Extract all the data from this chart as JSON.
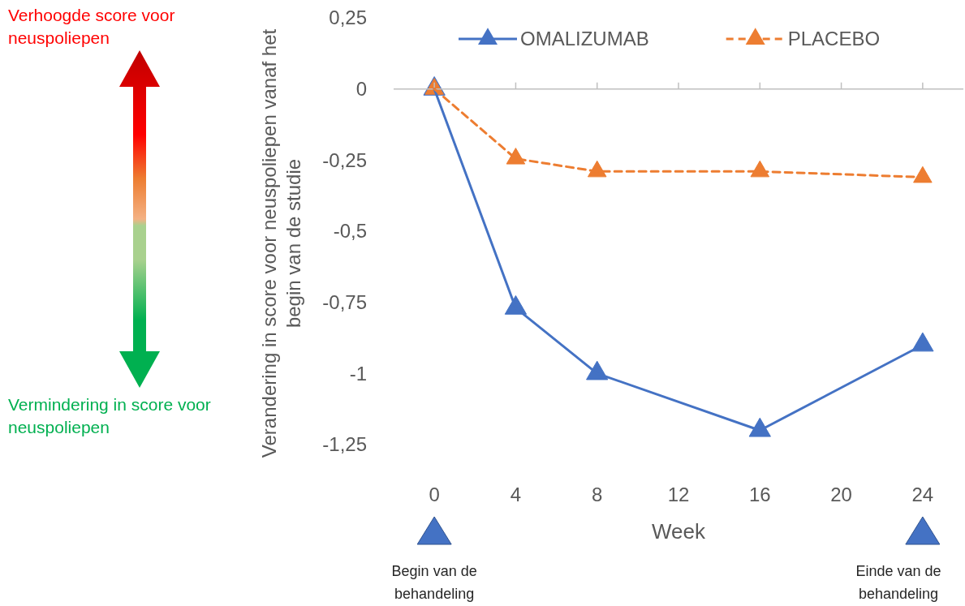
{
  "chart_data": {
    "type": "line",
    "xlabel": "Week",
    "ylabel": "Verandering in score voor neuspoliepen vanaf het begin van de studie",
    "x": [
      0,
      4,
      8,
      16,
      24
    ],
    "series": [
      {
        "name": "OMALIZUMAB",
        "color": "#4472c4",
        "values": [
          0,
          -0.77,
          -1.0,
          -1.2,
          -0.9
        ],
        "line_style": "solid"
      },
      {
        "name": "PLACEBO",
        "color": "#ed7d31",
        "values": [
          0,
          -0.245,
          -0.29,
          -0.29,
          -0.31
        ],
        "line_style": "dashed"
      }
    ],
    "xlim": [
      -2,
      26
    ],
    "xticks": [
      0,
      4,
      8,
      12,
      16,
      20,
      24
    ],
    "ylim": [
      -1.25,
      0.25
    ],
    "yticks": [
      {
        "value": 0.25,
        "label": "0,25"
      },
      {
        "value": 0,
        "label": "0"
      },
      {
        "value": -0.25,
        "label": "-0,25"
      },
      {
        "value": -0.5,
        "label": "-0,5"
      },
      {
        "value": -0.75,
        "label": "-0,75"
      },
      {
        "value": -1,
        "label": "-1"
      },
      {
        "value": -1.25,
        "label": "-1,25"
      }
    ],
    "ref_lines": [
      {
        "axis": "y",
        "value": 0,
        "color": "#bfbfbf",
        "line_style": "solid"
      }
    ],
    "marker": "triangle",
    "legend": "top",
    "grid": false,
    "annotations": [
      "Verhoogde score voor neuspoliepen",
      "Vermindering in score voor neuspoliepen",
      "Begin van de behandeling",
      "Einde van de behandeling"
    ]
  }
}
